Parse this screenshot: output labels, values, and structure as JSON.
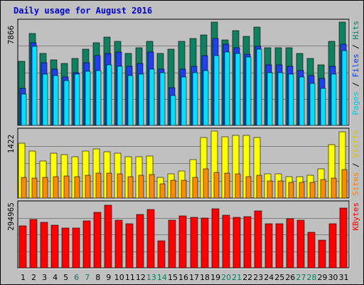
{
  "chart_data": {
    "type": "bar",
    "title": "Daily usage for August 2016",
    "categories": [
      "1",
      "2",
      "3",
      "4",
      "5",
      "6",
      "7",
      "8",
      "9",
      "10",
      "11",
      "12",
      "13",
      "14",
      "15",
      "16",
      "17",
      "18",
      "19",
      "20",
      "21",
      "22",
      "23",
      "24",
      "25",
      "26",
      "27",
      "28",
      "29",
      "30",
      "31"
    ],
    "weekend_days": [
      "6",
      "7",
      "13",
      "14",
      "20",
      "21",
      "27",
      "28"
    ],
    "panels": [
      {
        "id": "hits-files-pages",
        "ymax_label": "7866",
        "ylim": [
          0,
          7866
        ],
        "legend": [
          {
            "text": "Pages",
            "color": "#00c8e0"
          },
          {
            "text": " / ",
            "color": "#000000"
          },
          {
            "text": "Files",
            "color": "#0040ff"
          },
          {
            "text": " / ",
            "color": "#000000"
          },
          {
            "text": "Hits",
            "color": "#008060"
          }
        ],
        "series": [
          {
            "name": "Hits",
            "color": "#108060",
            "values": [
              4900,
              7000,
              5500,
              5000,
              4700,
              5100,
              5800,
              6300,
              6700,
              6400,
              5500,
              5900,
              6400,
              5500,
              5800,
              6400,
              6600,
              6900,
              7866,
              6500,
              7200,
              6800,
              7500,
              5900,
              5900,
              5900,
              5500,
              5100,
              4600,
              6400,
              7866
            ]
          },
          {
            "name": "Files",
            "color": "#2040f0",
            "values": [
              2800,
              6300,
              4800,
              4300,
              3700,
              4000,
              4800,
              5300,
              5500,
              5600,
              4500,
              4700,
              5600,
              4300,
              2900,
              4300,
              4500,
              5300,
              6600,
              6200,
              5900,
              5400,
              6000,
              4600,
              4600,
              4500,
              4200,
              3800,
              3600,
              4500,
              6200
            ]
          },
          {
            "name": "Pages",
            "color": "#00e0ff",
            "values": [
              2400,
              6000,
              3900,
              3800,
              3400,
              3900,
              4100,
              4200,
              4600,
              4500,
              3800,
              3900,
              4300,
              4000,
              2300,
              3700,
              4000,
              4200,
              5300,
              5600,
              5500,
              5200,
              5800,
              4000,
              4000,
              3900,
              3700,
              3200,
              2800,
              3900,
              5700
            ]
          }
        ]
      },
      {
        "id": "visits-sites",
        "ymax_label": "1422",
        "ylim": [
          0,
          1422
        ],
        "legend": [
          {
            "text": "Sites",
            "color": "#ff8000"
          },
          {
            "text": " / ",
            "color": "#000000"
          },
          {
            "text": "Visits",
            "color": "#e0c000"
          }
        ],
        "series": [
          {
            "name": "Visits",
            "color": "#ffff00",
            "values": [
              1170,
              1000,
              780,
              960,
              920,
              880,
              1000,
              1040,
              980,
              950,
              880,
              870,
              890,
              440,
              510,
              570,
              820,
              1290,
              1422,
              1300,
              1330,
              1330,
              1290,
              520,
              510,
              460,
              450,
              490,
              620,
              1140,
              1400
            ]
          },
          {
            "name": "Sites",
            "color": "#ff8c00",
            "values": [
              440,
              430,
              440,
              450,
              470,
              460,
              480,
              530,
              530,
              510,
              460,
              480,
              500,
              300,
              380,
              380,
              440,
              620,
              540,
              530,
              510,
              460,
              480,
              370,
              370,
              340,
              330,
              330,
              390,
              430,
              600
            ]
          }
        ]
      },
      {
        "id": "kbytes",
        "ymax_label": "294965",
        "ylim": [
          0,
          294965
        ],
        "legend": [
          {
            "text": "KBytes",
            "color": "#ff0000"
          }
        ],
        "series": [
          {
            "name": "KBytes",
            "color": "#ff0000",
            "values": [
              195000,
              222000,
              210000,
              197000,
              184000,
              184000,
              216000,
              256000,
              290000,
              220000,
              202000,
              245000,
              270000,
              123000,
              218000,
              240000,
              232000,
              230000,
              271000,
              243000,
              232000,
              235000,
              262000,
              203000,
              203000,
              225000,
              219000,
              165000,
              127000,
              202000,
              275000
            ]
          }
        ]
      }
    ]
  }
}
